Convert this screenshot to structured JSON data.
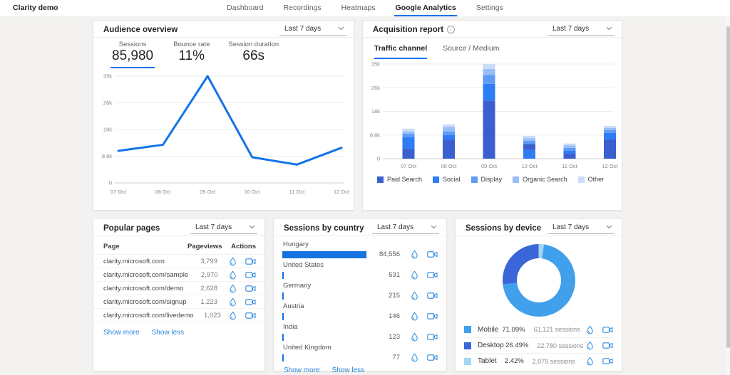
{
  "nav": {
    "brand": "Clarity demo",
    "tabs": [
      {
        "label": "Dashboard",
        "active": false
      },
      {
        "label": "Recordings",
        "active": false
      },
      {
        "label": "Heatmaps",
        "active": false
      },
      {
        "label": "Google Analytics",
        "active": true
      },
      {
        "label": "Settings",
        "active": false
      }
    ]
  },
  "colors": {
    "accent": "#1a73e8",
    "link": "#2b88d8",
    "line_series": "#1473e6",
    "country_bar": "#1673e0",
    "heatmap_icon": "#1b86dc",
    "camera_icon": "#2e86de",
    "channels": {
      "Paid Search": "#3c5fd0",
      "Social": "#2e7cf6",
      "Display": "#5e9bf5",
      "Organic Search": "#98bdf7",
      "Other": "#c9dcfa"
    },
    "devices": {
      "Mobile": "#41a0ec",
      "Desktop": "#3b66d9",
      "Tablet": "#a5d6f2"
    }
  },
  "cards": {
    "audience": {
      "title": "Audience overview",
      "range": "Last 7 days",
      "metrics": [
        {
          "label": "Sessions",
          "value": "85,980",
          "active": true
        },
        {
          "label": "Bounce rate",
          "value": "11%",
          "active": false
        },
        {
          "label": "Session duration",
          "value": "66s",
          "active": false
        }
      ]
    },
    "acquisition": {
      "title": "Acquisition report",
      "range": "Last 7 days",
      "tabs": [
        {
          "label": "Traffic channel",
          "active": true
        },
        {
          "label": "Source / Medium",
          "active": false
        }
      ]
    },
    "popular": {
      "title": "Popular pages",
      "range": "Last 7 days",
      "columns": [
        "Page",
        "Pageviews",
        "Actions"
      ],
      "rows": [
        {
          "page": "clarity.microsoft.com",
          "pageviews": "3,799"
        },
        {
          "page": "clarity.microsoft.com/sample",
          "pageviews": "2,970"
        },
        {
          "page": "clarity.microsoft.com/demo",
          "pageviews": "2,628"
        },
        {
          "page": "clarity.microsoft.com/signup",
          "pageviews": "1,223"
        },
        {
          "page": "clarity.microsoft.com/livedemo",
          "pageviews": "1,023"
        }
      ],
      "show_more": "Show more",
      "show_less": "Show less"
    },
    "country": {
      "title": "Sessions by country",
      "range": "Last 7 days",
      "rows": [
        {
          "name": "Hungary",
          "sessions": "84,556",
          "bar_pct": 100
        },
        {
          "name": "United States",
          "sessions": "531",
          "bar_pct": 1.3
        },
        {
          "name": "Germany",
          "sessions": "215",
          "bar_pct": 1
        },
        {
          "name": "Austria",
          "sessions": "146",
          "bar_pct": 1
        },
        {
          "name": "India",
          "sessions": "123",
          "bar_pct": 1
        },
        {
          "name": "United Kingdom",
          "sessions": "77",
          "bar_pct": 1
        }
      ],
      "show_more": "Show more",
      "show_less": "Show less"
    },
    "device": {
      "title": "Sessions by device",
      "range": "Last 7 days",
      "rows": [
        {
          "name": "Mobile",
          "percent": "71.09%",
          "sessions": "61,121 sessions"
        },
        {
          "name": "Desktop",
          "percent": "26.49%",
          "sessions": "22,780 sessions"
        },
        {
          "name": "Tablet",
          "percent": "2.42%",
          "sessions": "2,079 sessions"
        }
      ]
    }
  },
  "chart_data": [
    {
      "type": "line",
      "title": "Audience overview - Sessions",
      "x": [
        "07 Oct",
        "08 Oct",
        "09 Oct",
        "10 Oct",
        "11 Oct",
        "12 Oct"
      ],
      "values": [
        10500,
        12500,
        35000,
        8400,
        6000,
        11500
      ],
      "ylim": [
        0,
        35000
      ],
      "yticks": [
        {
          "v": 0,
          "label": "0"
        },
        {
          "v": 8750,
          "label": "8.8k"
        },
        {
          "v": 17500,
          "label": "18k"
        },
        {
          "v": 26250,
          "label": "26k"
        },
        {
          "v": 35000,
          "label": "35k"
        }
      ],
      "grid": true,
      "legend_position": "none"
    },
    {
      "type": "bar",
      "stacked": true,
      "title": "Acquisition report - Traffic channel",
      "categories": [
        "07 Oct",
        "08 Oct",
        "09 Oct",
        "10 Oct",
        "11 Oct",
        "12 Oct"
      ],
      "legend": [
        "Paid Search",
        "Social",
        "Display",
        "Organic Search",
        "Other"
      ],
      "legend_position": "bottom",
      "ylim": [
        0,
        35000
      ],
      "yticks": [
        {
          "v": 0,
          "label": "0"
        },
        {
          "v": 8750,
          "label": "8.8k"
        },
        {
          "v": 17500,
          "label": "18k"
        },
        {
          "v": 26250,
          "label": "26k"
        },
        {
          "v": 35000,
          "label": "35k"
        }
      ],
      "grid": true,
      "bars": [
        {
          "label": "07 Oct",
          "segments": [
            {
              "channel": "Paid Search",
              "value": 3700
            },
            {
              "channel": "Social",
              "value": 4200
            },
            {
              "channel": "Display",
              "value": 1300
            },
            {
              "channel": "Organic Search",
              "value": 900
            },
            {
              "channel": "Other",
              "value": 1000
            }
          ]
        },
        {
          "label": "08 Oct",
          "segments": [
            {
              "channel": "Paid Search",
              "value": 7200
            },
            {
              "channel": "Social",
              "value": 1500
            },
            {
              "channel": "Display",
              "value": 1300
            },
            {
              "channel": "Organic Search",
              "value": 1700
            },
            {
              "channel": "Other",
              "value": 1000
            }
          ]
        },
        {
          "label": "09 Oct",
          "segments": [
            {
              "channel": "Paid Search",
              "value": 21500
            },
            {
              "channel": "Social",
              "value": 6200
            },
            {
              "channel": "Display",
              "value": 3300
            },
            {
              "channel": "Organic Search",
              "value": 2200
            },
            {
              "channel": "Other",
              "value": 1800
            }
          ]
        },
        {
          "label": "10 Oct",
          "segments": [
            {
              "channel": "Social",
              "value": 3200
            },
            {
              "channel": "Paid Search",
              "value": 2200
            },
            {
              "channel": "Display",
              "value": 1200
            },
            {
              "channel": "Organic Search",
              "value": 900
            },
            {
              "channel": "Other",
              "value": 900
            }
          ]
        },
        {
          "label": "11 Oct",
          "segments": [
            {
              "channel": "Paid Search",
              "value": 2000
            },
            {
              "channel": "Social",
              "value": 1000
            },
            {
              "channel": "Display",
              "value": 1000
            },
            {
              "channel": "Organic Search",
              "value": 900
            },
            {
              "channel": "Other",
              "value": 700
            }
          ]
        },
        {
          "label": "12 Oct",
          "segments": [
            {
              "channel": "Paid Search",
              "value": 7200
            },
            {
              "channel": "Social",
              "value": 2300
            },
            {
              "channel": "Display",
              "value": 1100
            },
            {
              "channel": "Organic Search",
              "value": 800
            },
            {
              "channel": "Other",
              "value": 700
            }
          ]
        }
      ]
    },
    {
      "type": "pie",
      "donut": true,
      "title": "Sessions by device",
      "labels": [
        "Mobile",
        "Desktop",
        "Tablet"
      ],
      "values": [
        71.09,
        26.49,
        2.42
      ],
      "sessions": [
        61121,
        22780,
        2079
      ],
      "legend_position": "bottom"
    }
  ]
}
